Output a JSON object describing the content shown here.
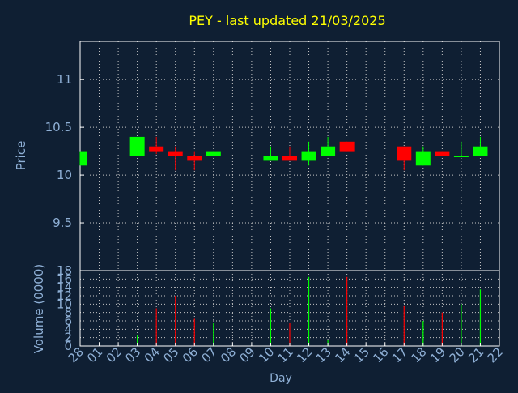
{
  "title": "PEY - last updated 21/03/2025",
  "colors": {
    "background": "#0f1f33",
    "title": "#ffff00",
    "axis_text": "#8fb0d6",
    "frame": "#ffffff",
    "grid": "#c8c8c8",
    "up": "#00ff00",
    "down": "#ff0000"
  },
  "chart_data": {
    "type": "candlestick",
    "title": "PEY - last updated 21/03/2025",
    "xlabel": "Day",
    "x_ticks": [
      "28",
      "01",
      "02",
      "03",
      "04",
      "05",
      "06",
      "07",
      "08",
      "09",
      "10",
      "11",
      "12",
      "13",
      "14",
      "15",
      "16",
      "17",
      "18",
      "19",
      "20",
      "21",
      "22"
    ],
    "price": {
      "ylabel": "Price",
      "ylim": [
        9.0,
        11.4
      ],
      "y_ticks": [
        "9.5",
        "10",
        "10.5",
        "11"
      ],
      "y_tick_values": [
        9.5,
        10,
        10.5,
        11
      ],
      "candles": [
        {
          "day": "28",
          "open": 10.1,
          "high": 10.25,
          "low": 10.1,
          "close": 10.25
        },
        {
          "day": "03",
          "open": 10.2,
          "high": 10.4,
          "low": 10.2,
          "close": 10.4
        },
        {
          "day": "04",
          "open": 10.3,
          "high": 10.4,
          "low": 10.22,
          "close": 10.25
        },
        {
          "day": "05",
          "open": 10.25,
          "high": 10.3,
          "low": 10.05,
          "close": 10.2
        },
        {
          "day": "06",
          "open": 10.2,
          "high": 10.25,
          "low": 10.05,
          "close": 10.15
        },
        {
          "day": "07",
          "open": 10.2,
          "high": 10.25,
          "low": 10.2,
          "close": 10.25
        },
        {
          "day": "10",
          "open": 10.15,
          "high": 10.3,
          "low": 10.15,
          "close": 10.2
        },
        {
          "day": "11",
          "open": 10.2,
          "high": 10.3,
          "low": 10.15,
          "close": 10.15
        },
        {
          "day": "12",
          "open": 10.15,
          "high": 10.35,
          "low": 10.1,
          "close": 10.25
        },
        {
          "day": "13",
          "open": 10.2,
          "high": 10.4,
          "low": 10.2,
          "close": 10.3
        },
        {
          "day": "14",
          "open": 10.35,
          "high": 10.35,
          "low": 10.25,
          "close": 10.25
        },
        {
          "day": "17",
          "open": 10.3,
          "high": 10.3,
          "low": 10.05,
          "close": 10.15
        },
        {
          "day": "18",
          "open": 10.1,
          "high": 10.3,
          "low": 10.1,
          "close": 10.25
        },
        {
          "day": "19",
          "open": 10.25,
          "high": 10.25,
          "low": 10.2,
          "close": 10.2
        },
        {
          "day": "20",
          "open": 10.2,
          "high": 10.35,
          "low": 10.2,
          "close": 10.2
        },
        {
          "day": "21",
          "open": 10.2,
          "high": 10.4,
          "low": 10.2,
          "close": 10.3
        }
      ]
    },
    "volume": {
      "ylabel": "Volume (0000)",
      "ylim": [
        0,
        18
      ],
      "y_ticks": [
        "0",
        "2",
        "4",
        "6",
        "8",
        "10",
        "12",
        "14",
        "16",
        "18"
      ],
      "y_tick_values": [
        0,
        2,
        4,
        6,
        8,
        10,
        12,
        14,
        16,
        18
      ],
      "bars": [
        {
          "day": "03",
          "value": 2.5,
          "direction": "up"
        },
        {
          "day": "04",
          "value": 9,
          "direction": "down"
        },
        {
          "day": "05",
          "value": 12,
          "direction": "down"
        },
        {
          "day": "06",
          "value": 6.5,
          "direction": "down"
        },
        {
          "day": "07",
          "value": 5.5,
          "direction": "up"
        },
        {
          "day": "10",
          "value": 9,
          "direction": "up"
        },
        {
          "day": "11",
          "value": 5.5,
          "direction": "down"
        },
        {
          "day": "12",
          "value": 16.5,
          "direction": "up"
        },
        {
          "day": "13",
          "value": 1.5,
          "direction": "up"
        },
        {
          "day": "14",
          "value": 16.5,
          "direction": "down"
        },
        {
          "day": "17",
          "value": 9.5,
          "direction": "down"
        },
        {
          "day": "18",
          "value": 6,
          "direction": "up"
        },
        {
          "day": "19",
          "value": 8,
          "direction": "down"
        },
        {
          "day": "20",
          "value": 10,
          "direction": "up"
        },
        {
          "day": "21",
          "value": 13.5,
          "direction": "up"
        }
      ]
    }
  }
}
